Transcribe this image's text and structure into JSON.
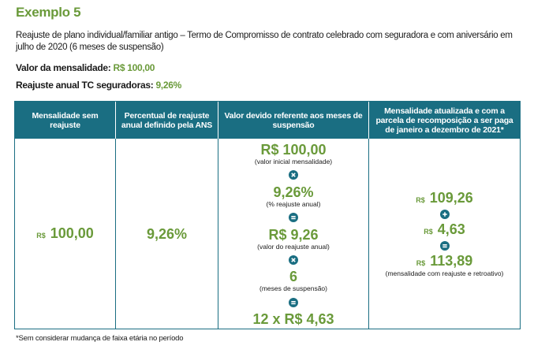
{
  "title": "Exemplo 5",
  "description": "Reajuste de plano individual/familiar antigo – Termo de Compromisso de contrato celebrado com seguradora e com aniversário em julho de 2020 (6 meses de suspensão)",
  "fields": [
    {
      "label": "Valor da mensalidade:",
      "value": "R$ 100,00"
    },
    {
      "label": "Reajuste anual TC seguradoras:",
      "value": "9,26%"
    }
  ],
  "table": {
    "headers": [
      "Mensalidade sem reajuste",
      "Percentual de reajuste anual definido pela ANS",
      "Valor devido referente aos meses de suspensão",
      "Mensalidade atualizada e com a parcela de recomposição a ser paga de janeiro a dezembro de 2021*"
    ],
    "col1": {
      "currency": "R$",
      "amount": "100,00"
    },
    "col2": "9,26%",
    "col3": [
      {
        "value": "R$ 100,00",
        "note": "(valor inicial mensalidade)"
      },
      {
        "value": "9,26%",
        "note": "(% reajuste anual)"
      },
      {
        "value": "R$ 9,26",
        "note": "(valor do reajuste anual)"
      },
      {
        "value": "6",
        "note": "(meses de suspensão)"
      },
      {
        "value": "12 x R$ 4,63"
      }
    ],
    "col4": [
      {
        "currency": "R$",
        "amount": "109,26"
      },
      {
        "currency": "R$",
        "amount": "4,63"
      },
      {
        "currency": "R$",
        "amount": "113,89",
        "note": "(mensalidade com reajuste e retroativo)"
      }
    ]
  },
  "footnote": "*Sem considerar mudança de faixa etária no período"
}
